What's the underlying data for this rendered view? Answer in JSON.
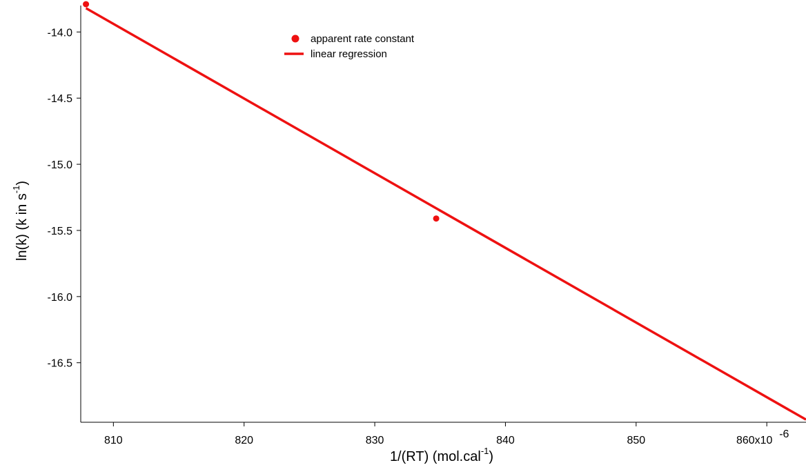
{
  "chart_data": {
    "type": "scatter",
    "xlabel": "1/(RT) (mol.cal",
    "xlabel_sup": "-1",
    "xlabel_close": ")",
    "ylabel": "ln(k) (k in s",
    "ylabel_sup": "-1",
    "ylabel_close": ")",
    "xlim": [
      807.5,
      863
    ],
    "ylim": [
      -16.95,
      -13.8
    ],
    "x_ticks": [
      810,
      820,
      830,
      840,
      850,
      860
    ],
    "x_tick_labels": [
      "810",
      "820",
      "830",
      "840",
      "850",
      "860x10"
    ],
    "x_tick_exponent": "-6",
    "y_ticks": [
      -14.0,
      -14.5,
      -15.0,
      -15.5,
      -16.0,
      -16.5
    ],
    "y_tick_labels": [
      "-14.0",
      "-14.5",
      "-15.0",
      "-15.5",
      "-16.0",
      "-16.5"
    ],
    "grid": false,
    "legend_position": "top-center",
    "series": [
      {
        "name": "apparent rate constant",
        "kind": "markers",
        "color": "#ee1111",
        "x": [
          807.9,
          834.7
        ],
        "y": [
          -13.79,
          -15.41
        ]
      },
      {
        "name": "linear regression",
        "kind": "line",
        "color": "#ee1111",
        "x": [
          807.9,
          863
        ],
        "y": [
          -13.82,
          -16.93
        ]
      }
    ]
  }
}
